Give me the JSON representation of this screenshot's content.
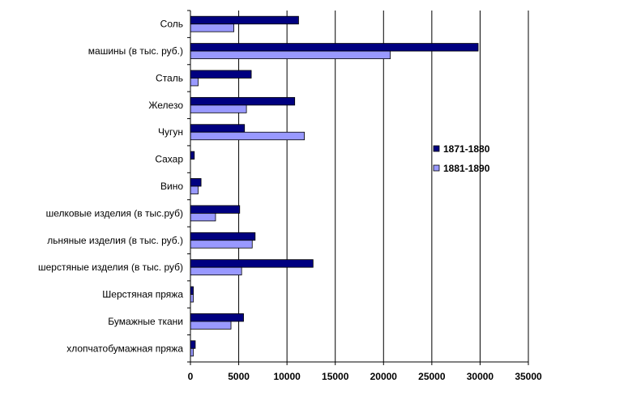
{
  "chart_data": {
    "type": "bar",
    "orientation": "horizontal",
    "categories": [
      "Соль",
      "машины (в тыс. руб.)",
      "Сталь",
      "Железо",
      "Чугун",
      "Сахар",
      "Вино",
      "шелковые изделия (в тыс.руб)",
      "льняные изделия (в тыс. руб.)",
      "шерстяные изделия (в тыс. руб)",
      "Шерстяная пряжа",
      "Бумажные ткани",
      "хлопчатобумажная пряжа"
    ],
    "series": [
      {
        "name": "1871-1880",
        "color": "#000080",
        "values": [
          11200,
          29800,
          6300,
          10800,
          5600,
          400,
          1100,
          5100,
          6700,
          12700,
          300,
          5500,
          500
        ]
      },
      {
        "name": "1881-1890",
        "color": "#9999ff",
        "values": [
          4500,
          20700,
          800,
          5800,
          11800,
          0,
          800,
          2600,
          6400,
          5300,
          300,
          4200,
          300
        ]
      }
    ],
    "xlim": [
      0,
      35000
    ],
    "xticks": [
      "0",
      "5000",
      "10000",
      "15000",
      "20000",
      "25000",
      "30000",
      "35000"
    ],
    "grid": true,
    "legend_position": "right"
  }
}
